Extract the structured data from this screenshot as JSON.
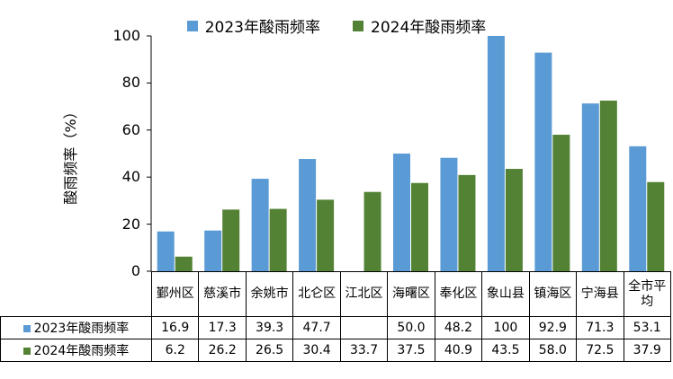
{
  "chart_data": {
    "type": "bar",
    "categories": [
      "鄞州区",
      "慈溪市",
      "余姚市",
      "北仑区",
      "江北区",
      "海曙区",
      "奉化区",
      "象山县",
      "镇海区",
      "宁海县",
      "全市平均"
    ],
    "series": [
      {
        "name": "2023年酸雨频率",
        "color": "#5b9bd5",
        "values": [
          16.9,
          17.3,
          39.3,
          47.7,
          null,
          50.0,
          48.2,
          100,
          92.9,
          71.3,
          53.1
        ],
        "labels": [
          "16.9",
          "17.3",
          "39.3",
          "47.7",
          "",
          "50.0",
          "48.2",
          "100",
          "92.9",
          "71.3",
          "53.1"
        ]
      },
      {
        "name": "2024年酸雨频率",
        "color": "#548235",
        "values": [
          6.2,
          26.2,
          26.5,
          30.4,
          33.7,
          37.5,
          40.9,
          43.5,
          58.0,
          72.5,
          37.9
        ],
        "labels": [
          "6.2",
          "26.2",
          "26.5",
          "30.4",
          "33.7",
          "37.5",
          "40.9",
          "43.5",
          "58.0",
          "72.5",
          "37.9"
        ]
      }
    ],
    "ylabel": "酸雨频率（%）",
    "xlabel": "",
    "ylim": [
      0,
      100
    ],
    "yticks": [
      "0",
      "20",
      "40",
      "60",
      "80",
      "100"
    ],
    "grid": false,
    "legend": "top-center",
    "data_table": true
  }
}
